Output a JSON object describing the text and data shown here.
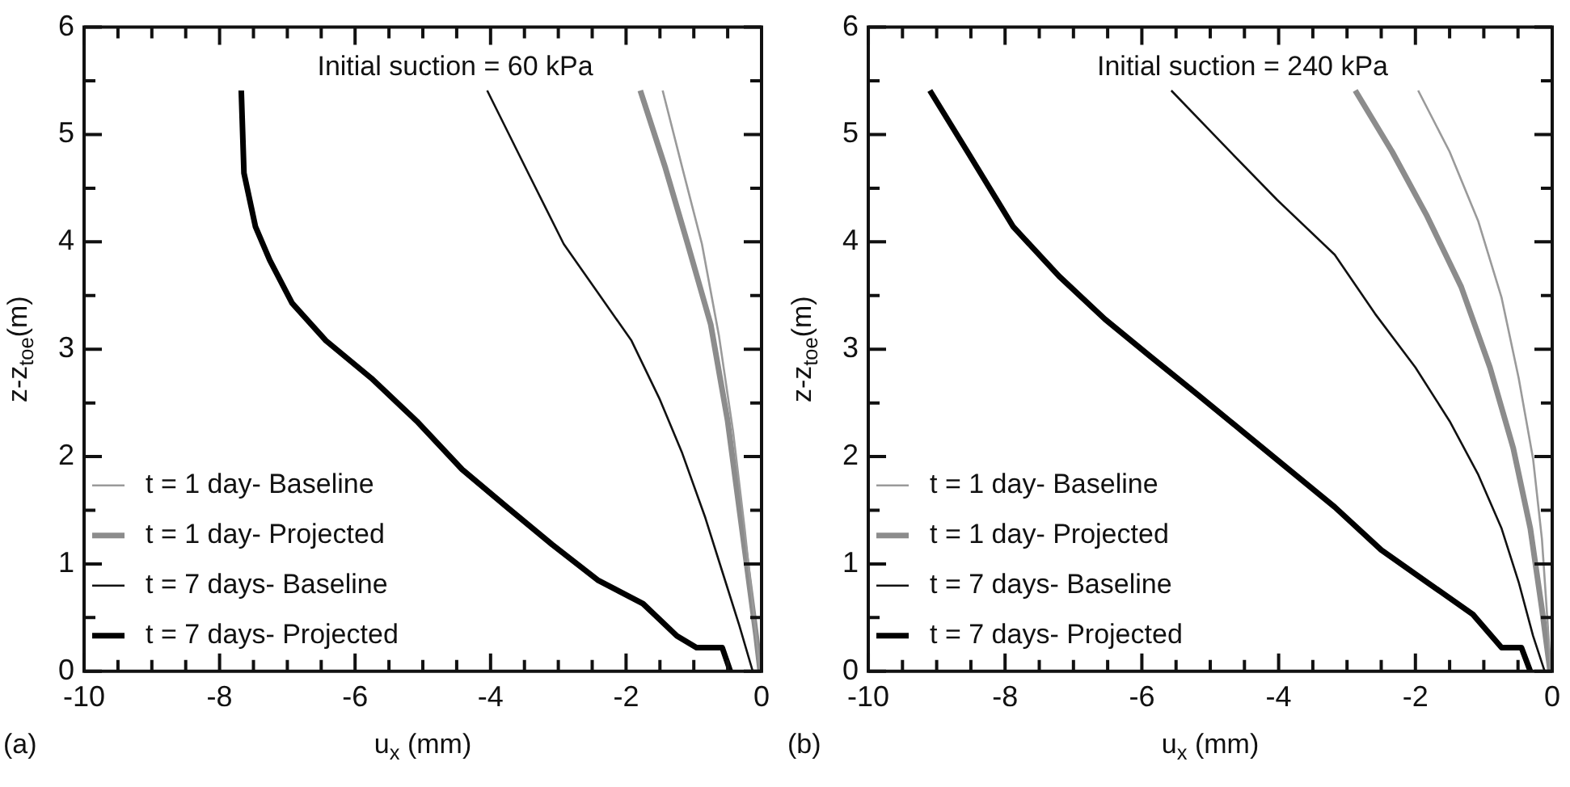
{
  "chart_data": [
    {
      "type": "line",
      "title": "Initial suction = 60 kPa",
      "xlabel": "u$_{x}$ (mm)",
      "ylabel": "z-z$_{toe}$(m)",
      "annotations": [
        "(a)"
      ],
      "legend": "bottom left",
      "grid": false,
      "xlim": [
        -10,
        0
      ],
      "ylim": [
        0,
        6
      ],
      "xticks": [
        -10,
        {
          "value": -9.5,
          "label": null
        },
        {
          "value": -9,
          "label": null
        },
        {
          "value": -8.5,
          "label": null
        },
        -8,
        {
          "value": -7.5,
          "label": null
        },
        {
          "value": -7,
          "label": null
        },
        {
          "value": -6.5,
          "label": null
        },
        -6,
        {
          "value": -5.5,
          "label": null
        },
        {
          "value": -5,
          "label": null
        },
        {
          "value": -4.5,
          "label": null
        },
        -4,
        {
          "value": -3.5,
          "label": null
        },
        {
          "value": -3,
          "label": null
        },
        {
          "value": -2.5,
          "label": null
        },
        -2,
        {
          "value": -1.5,
          "label": null
        },
        {
          "value": -1,
          "label": null
        },
        {
          "value": -0.5,
          "label": null
        },
        0
      ],
      "yticks": [
        0,
        {
          "value": 0.5,
          "label": null
        },
        1,
        {
          "value": 1.5,
          "label": null
        },
        2,
        {
          "value": 2.5,
          "label": null
        },
        3,
        {
          "value": 3.5,
          "label": null
        },
        4,
        {
          "value": 4.5,
          "label": null
        },
        5,
        {
          "value": 5.5,
          "label": null
        },
        6
      ],
      "series": [
        {
          "name": "t = 1 day- Baseline",
          "color": "#9a9a9a",
          "x": [
            -1.46,
            -1.17,
            -0.88,
            -0.63,
            -0.42,
            -0.25,
            -0.08,
            -0.02
          ],
          "values": [
            5.41,
            4.69,
            3.98,
            3.13,
            2.23,
            1.33,
            0.33,
            0
          ]
        },
        {
          "name": "t = 1 day- Projected",
          "color": "#8c8c8c",
          "x": [
            -1.79,
            -1.42,
            -1.09,
            -0.75,
            -0.5,
            -0.29,
            -0.08,
            -0.02
          ],
          "values": [
            5.41,
            4.69,
            3.98,
            3.23,
            2.33,
            1.33,
            0.33,
            0
          ]
        },
        {
          "name": "t = 7 days- Baseline",
          "color": "#111111",
          "x": [
            -4.05,
            -3.42,
            -2.92,
            -2.42,
            -1.92,
            -1.5,
            -1.17,
            -0.83,
            -0.58,
            -0.33,
            -0.13
          ],
          "values": [
            5.41,
            4.61,
            3.98,
            3.53,
            3.08,
            2.53,
            2.03,
            1.43,
            0.93,
            0.43,
            0
          ]
        },
        {
          "name": "t = 7 days- Projected",
          "color": "#000000",
          "x": [
            -7.68,
            -7.64,
            -7.47,
            -7.26,
            -6.93,
            -6.43,
            -5.76,
            -5.09,
            -4.42,
            -3.76,
            -3.09,
            -2.42,
            -1.75,
            -1.25,
            -0.96,
            -0.58,
            -0.46
          ],
          "values": [
            5.41,
            4.64,
            4.14,
            3.83,
            3.43,
            3.08,
            2.73,
            2.33,
            1.88,
            1.53,
            1.18,
            0.85,
            0.63,
            0.33,
            0.22,
            0.22,
            0
          ]
        }
      ]
    },
    {
      "type": "line",
      "title": "Initial suction = 240 kPa",
      "xlabel": "u$_{x}$ (mm)",
      "ylabel": "z-z$_{toe}$(m)",
      "annotations": [
        "(b)"
      ],
      "legend": "bottom left",
      "grid": false,
      "xlim": [
        -10,
        0
      ],
      "ylim": [
        0,
        6
      ],
      "xticks": [
        -10,
        {
          "value": -9.5,
          "label": null
        },
        {
          "value": -9,
          "label": null
        },
        {
          "value": -8.5,
          "label": null
        },
        -8,
        {
          "value": -7.5,
          "label": null
        },
        {
          "value": -7,
          "label": null
        },
        {
          "value": -6.5,
          "label": null
        },
        -6,
        {
          "value": -5.5,
          "label": null
        },
        {
          "value": -5,
          "label": null
        },
        {
          "value": -4.5,
          "label": null
        },
        -4,
        {
          "value": -3.5,
          "label": null
        },
        {
          "value": -3,
          "label": null
        },
        {
          "value": -2.5,
          "label": null
        },
        -2,
        {
          "value": -1.5,
          "label": null
        },
        {
          "value": -1,
          "label": null
        },
        {
          "value": -0.5,
          "label": null
        },
        0
      ],
      "yticks": [
        0,
        {
          "value": 0.5,
          "label": null
        },
        1,
        {
          "value": 1.5,
          "label": null
        },
        2,
        {
          "value": 2.5,
          "label": null
        },
        3,
        {
          "value": 3.5,
          "label": null
        },
        4,
        {
          "value": 4.5,
          "label": null
        },
        5,
        {
          "value": 5.5,
          "label": null
        },
        6
      ],
      "series": [
        {
          "name": "t = 1 day- Baseline",
          "color": "#9a9a9a",
          "x": [
            -1.96,
            -1.5,
            -1.08,
            -0.74,
            -0.49,
            -0.28,
            -0.15,
            -0.07,
            -0.02
          ],
          "values": [
            5.41,
            4.84,
            4.19,
            3.48,
            2.73,
            1.98,
            1.23,
            0.48,
            0
          ]
        },
        {
          "name": "t = 1 day- Projected",
          "color": "#8c8c8c",
          "x": [
            -2.88,
            -2.34,
            -1.83,
            -1.33,
            -0.91,
            -0.57,
            -0.32,
            -0.15,
            -0.03
          ],
          "values": [
            5.41,
            4.84,
            4.24,
            3.58,
            2.83,
            2.08,
            1.33,
            0.58,
            0
          ]
        },
        {
          "name": "t = 7 days- Baseline",
          "color": "#111111",
          "x": [
            -5.57,
            -4.86,
            -4.02,
            -3.18,
            -2.59,
            -2.0,
            -1.5,
            -1.08,
            -0.74,
            -0.49,
            -0.28,
            -0.11
          ],
          "values": [
            5.41,
            4.94,
            4.39,
            3.88,
            3.33,
            2.83,
            2.33,
            1.83,
            1.33,
            0.83,
            0.33,
            0
          ]
        },
        {
          "name": "t = 7 days- Projected",
          "color": "#000000",
          "x": [
            -9.1,
            -8.55,
            -7.88,
            -7.21,
            -6.54,
            -5.87,
            -5.19,
            -4.52,
            -3.85,
            -3.18,
            -2.5,
            -1.83,
            -1.16,
            -0.74,
            -0.45,
            -0.32
          ],
          "values": [
            5.41,
            4.84,
            4.14,
            3.68,
            3.28,
            2.93,
            2.58,
            2.23,
            1.88,
            1.53,
            1.13,
            0.83,
            0.53,
            0.22,
            0.22,
            0
          ]
        }
      ]
    }
  ]
}
